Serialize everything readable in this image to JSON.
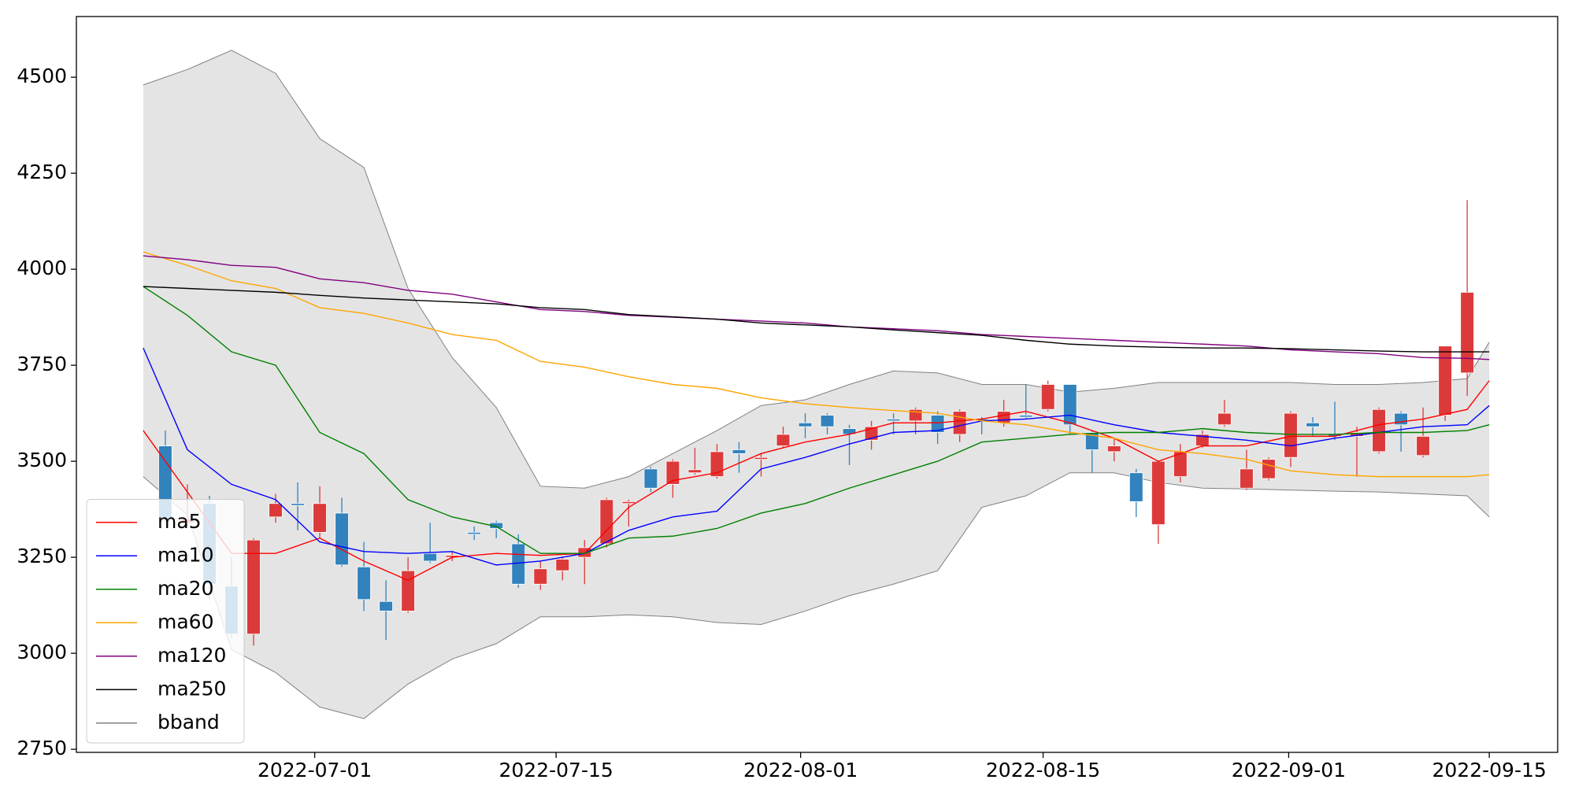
{
  "chart_data": {
    "type": "candlestick",
    "xlim": [
      -3.03,
      64.1
    ],
    "ylim": [
      2742,
      4658
    ],
    "yticks": [
      2750,
      3000,
      3250,
      3500,
      3750,
      4000,
      4250,
      4500
    ],
    "xticks": [
      {
        "value": 7.77,
        "label": "2022-07-01"
      },
      {
        "value": 18.71,
        "label": "2022-07-15"
      },
      {
        "value": 29.79,
        "label": "2022-08-01"
      },
      {
        "value": 40.78,
        "label": "2022-08-15"
      },
      {
        "value": 51.91,
        "label": "2022-09-01"
      },
      {
        "value": 61.0,
        "label": "2022-09-15"
      }
    ],
    "legend": "lower left",
    "up_color": "#dc3a3a",
    "down_color": "#3182bd",
    "candles": {
      "x": [
        1,
        2,
        3,
        4,
        5,
        6,
        7,
        8,
        9,
        10,
        11,
        12,
        13,
        14,
        15,
        16,
        17,
        18,
        19,
        20,
        21,
        22,
        23,
        24,
        25,
        26,
        27,
        28,
        29,
        30,
        31,
        32,
        33,
        34,
        35,
        36,
        37,
        38,
        39,
        40,
        41,
        42,
        43,
        44,
        45,
        46,
        47,
        48,
        49,
        50,
        51,
        52,
        53,
        54,
        55,
        56,
        57,
        58,
        59,
        60
      ],
      "open": [
        3540,
        3340,
        3390,
        3175,
        3050,
        3355,
        3390,
        3315,
        3365,
        3225,
        3135,
        3110,
        3260,
        3250,
        3315,
        3340,
        3285,
        3180,
        3215,
        3250,
        3285,
        3390,
        3480,
        3440,
        3470,
        3460,
        3530,
        3505,
        3540,
        3600,
        3620,
        3585,
        3555,
        3610,
        3605,
        3620,
        3570,
        3610,
        3600,
        3620,
        3635,
        3700,
        3575,
        3525,
        3470,
        3335,
        3460,
        3540,
        3595,
        3430,
        3455,
        3510,
        3600,
        3570,
        3565,
        3525,
        3625,
        3515,
        3620,
        3730
      ],
      "close": [
        3350,
        3350,
        3180,
        3050,
        3295,
        3390,
        3385,
        3390,
        3230,
        3140,
        3110,
        3215,
        3240,
        3255,
        3310,
        3325,
        3180,
        3220,
        3245,
        3275,
        3400,
        3395,
        3430,
        3500,
        3478,
        3525,
        3520,
        3510,
        3570,
        3590,
        3590,
        3570,
        3590,
        3605,
        3635,
        3575,
        3630,
        3605,
        3630,
        3615,
        3700,
        3595,
        3530,
        3540,
        3395,
        3500,
        3525,
        3570,
        3625,
        3480,
        3505,
        3625,
        3590,
        3565,
        3575,
        3635,
        3595,
        3565,
        3800,
        3940
      ],
      "high": [
        3580,
        3440,
        3410,
        3250,
        3300,
        3415,
        3445,
        3435,
        3405,
        3290,
        3190,
        3250,
        3340,
        3265,
        3330,
        3345,
        3310,
        3240,
        3250,
        3295,
        3405,
        3400,
        3485,
        3505,
        3535,
        3545,
        3550,
        3520,
        3590,
        3625,
        3625,
        3595,
        3605,
        3625,
        3640,
        3630,
        3635,
        3615,
        3660,
        3700,
        3710,
        3700,
        3580,
        3560,
        3480,
        3500,
        3545,
        3580,
        3660,
        3530,
        3510,
        3630,
        3615,
        3655,
        3590,
        3640,
        3630,
        3640,
        3800,
        4180
      ],
      "low": [
        3340,
        3330,
        3140,
        3040,
        3020,
        3340,
        3320,
        3300,
        3225,
        3110,
        3035,
        3105,
        3235,
        3240,
        3295,
        3300,
        3170,
        3165,
        3190,
        3180,
        3275,
        3330,
        3420,
        3405,
        3465,
        3455,
        3470,
        3460,
        3535,
        3560,
        3570,
        3490,
        3530,
        3570,
        3570,
        3545,
        3550,
        3570,
        3590,
        3610,
        3630,
        3570,
        3470,
        3500,
        3355,
        3285,
        3445,
        3535,
        3590,
        3425,
        3450,
        3485,
        3565,
        3555,
        3460,
        3520,
        3525,
        3510,
        3605,
        3670
      ]
    },
    "series_x": [
      0,
      2,
      4,
      6,
      8,
      10,
      12,
      14,
      16,
      18,
      20,
      22,
      24,
      26,
      28,
      30,
      32,
      34,
      36,
      38,
      40,
      42,
      44,
      46,
      48,
      50,
      52,
      54,
      56,
      58,
      60,
      61
    ],
    "series": [
      {
        "name": "ma5",
        "color": "red",
        "values": [
          3580,
          3420,
          3260,
          3260,
          3300,
          3240,
          3190,
          3250,
          3260,
          3255,
          3260,
          3380,
          3450,
          3470,
          3520,
          3550,
          3570,
          3600,
          3600,
          3610,
          3630,
          3600,
          3560,
          3500,
          3540,
          3540,
          3565,
          3565,
          3595,
          3610,
          3635,
          3710
        ]
      },
      {
        "name": "ma10",
        "color": "blue",
        "values": [
          3795,
          3530,
          3440,
          3400,
          3290,
          3265,
          3260,
          3265,
          3230,
          3240,
          3260,
          3320,
          3355,
          3370,
          3480,
          3510,
          3545,
          3575,
          3580,
          3605,
          3610,
          3620,
          3595,
          3575,
          3565,
          3555,
          3540,
          3560,
          3575,
          3590,
          3595,
          3645
        ]
      },
      {
        "name": "ma20",
        "color": "green",
        "values": [
          3955,
          3880,
          3785,
          3750,
          3575,
          3520,
          3400,
          3355,
          3330,
          3260,
          3260,
          3300,
          3305,
          3325,
          3365,
          3390,
          3430,
          3465,
          3500,
          3550,
          3560,
          3570,
          3575,
          3575,
          3585,
          3575,
          3570,
          3570,
          3575,
          3575,
          3580,
          3595
        ]
      },
      {
        "name": "ma60",
        "color": "orange",
        "values": [
          4045,
          4010,
          3970,
          3950,
          3900,
          3885,
          3860,
          3830,
          3815,
          3760,
          3745,
          3720,
          3700,
          3690,
          3665,
          3650,
          3640,
          3632,
          3625,
          3605,
          3595,
          3575,
          3560,
          3530,
          3520,
          3505,
          3475,
          3465,
          3460,
          3460,
          3460,
          3465
        ]
      },
      {
        "name": "ma120",
        "color": "purple",
        "values": [
          4035,
          4025,
          4010,
          4005,
          3975,
          3965,
          3945,
          3935,
          3915,
          3895,
          3890,
          3880,
          3875,
          3870,
          3865,
          3860,
          3850,
          3845,
          3840,
          3830,
          3825,
          3820,
          3815,
          3810,
          3805,
          3800,
          3790,
          3785,
          3780,
          3770,
          3768,
          3765
        ]
      },
      {
        "name": "ma250",
        "color": "black",
        "values": [
          3955,
          3950,
          3945,
          3940,
          3932,
          3925,
          3920,
          3915,
          3910,
          3900,
          3895,
          3882,
          3876,
          3870,
          3860,
          3855,
          3850,
          3842,
          3835,
          3828,
          3815,
          3805,
          3800,
          3797,
          3795,
          3795,
          3793,
          3790,
          3787,
          3785,
          3785,
          3785
        ]
      }
    ],
    "band": {
      "name": "bband",
      "color": "gray",
      "fill": "#e4e4e4",
      "upper": [
        4480,
        4520,
        4570,
        4510,
        4340,
        4265,
        3950,
        3770,
        3640,
        3435,
        3430,
        3460,
        3520,
        3580,
        3645,
        3660,
        3700,
        3735,
        3730,
        3700,
        3700,
        3680,
        3690,
        3705,
        3705,
        3705,
        3705,
        3700,
        3700,
        3705,
        3715,
        3810
      ],
      "lower": [
        3460,
        3360,
        3010,
        2950,
        2860,
        2830,
        2920,
        2985,
        3025,
        3095,
        3095,
        3100,
        3095,
        3080,
        3075,
        3110,
        3150,
        3180,
        3215,
        3380,
        3410,
        3470,
        3470,
        3445,
        3430,
        3428,
        3425,
        3422,
        3420,
        3415,
        3410,
        3355
      ]
    }
  }
}
